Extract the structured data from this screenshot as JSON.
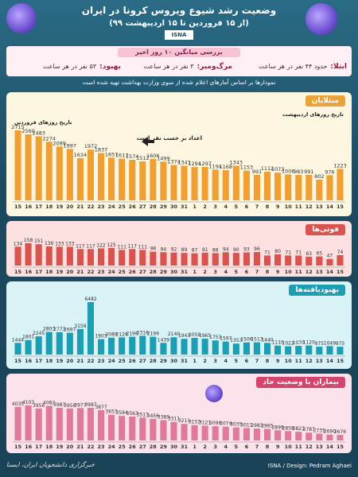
{
  "header": {
    "title": "وضعیت رشد شیوع ویروس کرونا در ایران",
    "subtitle": "(از ۱۵ فروردین تا ۱۵ اردیبهشت ۹۹)",
    "brand": "ISNA"
  },
  "summary": {
    "title": "بررسی میانگین ۱۰ روز اخیر",
    "infected_label": "ابتلا:",
    "infected_value": "حدود ۴۴ نفر در هر ساعت",
    "death_label": "مرگ‌ومیر:",
    "death_value": "۳ نفر در هر ساعت",
    "recovery_label": "بهبود:",
    "recovery_value": "۵۳ نفر در هر ساعت"
  },
  "note": "نمودارها بر اساس آمارهای اعلام شده از سوی وزارت بهداشت تهیه شده است",
  "footer": {
    "credit": "ISNA / Design: Pedram Aghaei",
    "agency": "خبرگزاری دانشجویان ایران، ایسنا"
  },
  "chart_data": [
    {
      "type": "bar",
      "title": "مبتلایان",
      "annotation_farvardin": "تاریخ روزهای فروردین",
      "annotation_ordibehesht": "تاریخ روزهای اردیبهشت",
      "annotation_daily": "اعداد بر حسب نفر است",
      "color": "#f0a033",
      "categories": [
        "15",
        "16",
        "17",
        "18",
        "19",
        "20",
        "21",
        "22",
        "23",
        "24",
        "25",
        "26",
        "27",
        "28",
        "29",
        "30",
        "31",
        "1",
        "2",
        "3",
        "4",
        "5",
        "6",
        "7",
        "8",
        "9",
        "10",
        "11",
        "12",
        "13",
        "14",
        "15"
      ],
      "values": [
        2715,
        2560,
        2483,
        2274,
        2089,
        1997,
        1634,
        1972,
        1837,
        1657,
        1617,
        1574,
        1512,
        1606,
        1499,
        1374,
        1343,
        1294,
        1297,
        1194,
        1168,
        1343,
        1153,
        991,
        1112,
        1073,
        1006,
        983,
        991,
        802,
        976,
        1223
      ]
    },
    {
      "type": "bar",
      "title": "فوتی‌ها",
      "color": "#d9534f",
      "categories": [
        "15",
        "16",
        "17",
        "18",
        "19",
        "20",
        "21",
        "22",
        "23",
        "24",
        "25",
        "26",
        "27",
        "28",
        "29",
        "30",
        "31",
        "1",
        "2",
        "3",
        "4",
        "5",
        "6",
        "7",
        "8",
        "9",
        "10",
        "11",
        "12",
        "13",
        "14",
        "15"
      ],
      "values": [
        134,
        158,
        151,
        136,
        133,
        133,
        117,
        117,
        122,
        125,
        111,
        117,
        111,
        98,
        94,
        92,
        89,
        87,
        91,
        88,
        94,
        90,
        93,
        96,
        71,
        80,
        71,
        71,
        63,
        65,
        47,
        74
      ]
    },
    {
      "type": "bar",
      "title": "بهبودیافته‌ها",
      "color": "#1c9fb3",
      "categories": [
        "15",
        "16",
        "17",
        "18",
        "19",
        "20",
        "21",
        "22",
        "23",
        "24",
        "25",
        "26",
        "27",
        "28",
        "29",
        "30",
        "31",
        "1",
        "2",
        "3",
        "4",
        "5",
        "6",
        "7",
        "8",
        "9",
        "10",
        "11",
        "12",
        "13",
        "14",
        "15"
      ],
      "values": [
        1444,
        1801,
        2245,
        2803,
        2773,
        2697,
        3158,
        6482,
        1903,
        2089,
        2126,
        2196,
        2316,
        2199,
        1439,
        2140,
        1943,
        2059,
        1965,
        1753,
        1597,
        1353,
        1506,
        1513,
        1440,
        1110,
        1022,
        1070,
        1120,
        975,
        1049,
        975
      ]
    },
    {
      "type": "bar",
      "title": "بیماران با وضعیت حاد",
      "color": "#e07a9a",
      "categories": [
        "15",
        "16",
        "17",
        "18",
        "19",
        "20",
        "21",
        "22",
        "23",
        "24",
        "25",
        "26",
        "27",
        "28",
        "29",
        "30",
        "31",
        "1",
        "2",
        "3",
        "4",
        "5",
        "6",
        "7",
        "8",
        "9",
        "10",
        "11",
        "12",
        "13",
        "14",
        "15"
      ],
      "values": [
        4035,
        4103,
        3956,
        4082,
        3987,
        3956,
        3977,
        3987,
        3877,
        3653,
        3594,
        3563,
        3513,
        3456,
        3389,
        3311,
        3211,
        3153,
        3121,
        3096,
        3074,
        3035,
        3011,
        2983,
        2965,
        2899,
        2858,
        2823,
        2787,
        2735,
        2690,
        2676
      ]
    }
  ]
}
